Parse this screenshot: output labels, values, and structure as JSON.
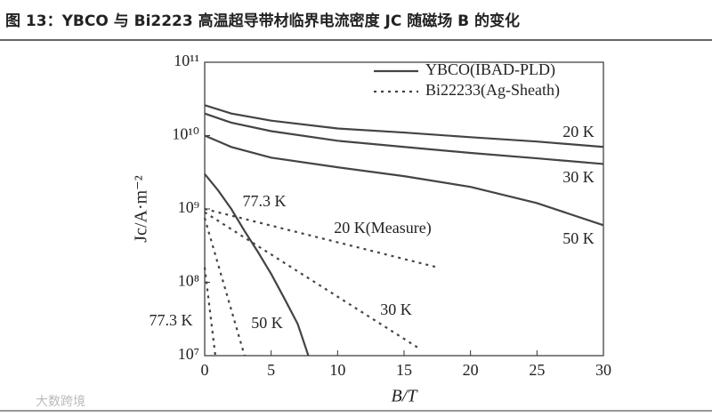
{
  "chart_data": {
    "type": "line",
    "title": "图 13：YBCO 与 Bi2223 高温超导带材临界电流密度 JC 随磁场 B 的变化",
    "x_label": "B/T",
    "y_label": "Jc/A·m⁻²",
    "log_y": true,
    "xlim": [
      0,
      30
    ],
    "xticks": [
      0,
      5,
      10,
      15,
      20,
      25,
      30
    ],
    "ylim": [
      10000000,
      100000000000
    ],
    "yticks": [
      {
        "value": 10000000,
        "label": "10⁷"
      },
      {
        "value": 100000000,
        "label": "10⁸"
      },
      {
        "value": 1000000000,
        "label": "10⁹"
      },
      {
        "value": 10000000000,
        "label": "10¹⁰"
      },
      {
        "value": 100000000000,
        "label": "10¹¹"
      }
    ],
    "legend_position": "upper right",
    "legend": [
      {
        "name": "YBCO(IBAD-PLD)",
        "style": "solid"
      },
      {
        "name": "Bi22233(Ag-Sheath)",
        "style": "dotted"
      }
    ],
    "color": "#444444",
    "series": [
      {
        "name": "20 K",
        "style": "solid",
        "x": [
          0,
          2,
          5,
          10,
          15,
          20,
          25,
          30
        ],
        "values": [
          26000000000,
          20000000000,
          16000000000,
          12500000000,
          11000000000,
          9500000000,
          8300000000,
          7000000000
        ]
      },
      {
        "name": "30 K",
        "style": "solid",
        "x": [
          0,
          2,
          5,
          10,
          15,
          20,
          25,
          30
        ],
        "values": [
          20000000000,
          15000000000,
          11500000000,
          8500000000,
          7000000000,
          5800000000,
          4900000000,
          4100000000
        ]
      },
      {
        "name": "50 K",
        "style": "solid",
        "x": [
          0,
          2,
          5,
          10,
          15,
          20,
          25,
          30
        ],
        "values": [
          10000000000,
          7000000000,
          5000000000,
          3700000000,
          2800000000,
          2000000000,
          1200000000,
          600000000
        ]
      },
      {
        "name": "77.3 K",
        "style": "solid",
        "x": [
          0,
          1,
          2,
          3,
          4,
          5,
          6,
          7,
          7.8
        ],
        "values": [
          3000000000,
          1800000000,
          1000000000,
          500000000,
          260000000,
          130000000,
          60000000,
          27000000,
          10000000
        ]
      },
      {
        "name": "20 K(Measure)",
        "style": "dotted",
        "x": [
          0,
          17.5
        ],
        "values": [
          1000000000,
          160000000
        ]
      },
      {
        "name": "30 K",
        "style": "dotted",
        "x": [
          0,
          16
        ],
        "values": [
          900000000,
          13000000
        ]
      },
      {
        "name": "50 K",
        "style": "dotted",
        "x": [
          0,
          3
        ],
        "values": [
          750000000,
          10000000
        ]
      },
      {
        "name": "77.3 K",
        "style": "dotted",
        "x": [
          0,
          0.8
        ],
        "values": [
          160000000,
          10000000
        ]
      }
    ],
    "watermark": "大数跨境"
  }
}
